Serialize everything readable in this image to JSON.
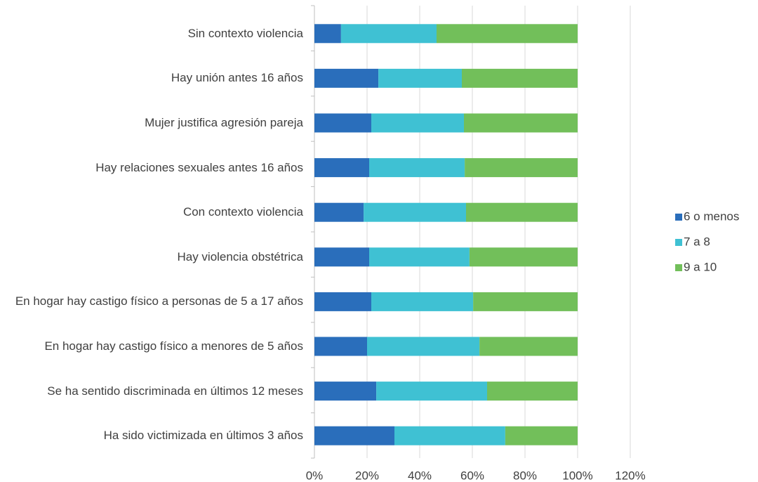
{
  "chart_data": {
    "type": "stacked-barh",
    "categories": [
      "Sin contexto violencia",
      "Hay unión antes 16 años",
      "Mujer justifica agresión pareja",
      "Hay relaciones sexuales antes 16 años",
      "Con contexto violencia",
      "Hay violencia obstétrica",
      "En hogar hay castigo físico a personas de 5 a 17 años",
      "En hogar hay castigo físico a menores de 5 años",
      "Se ha sentido discriminada en últimos 12 meses",
      "Ha sido victimizada en últimos 3 años"
    ],
    "series": [
      {
        "name": "6 o menos",
        "color": "#2a6ebb",
        "values": [
          10.1,
          24.3,
          21.6,
          20.8,
          18.7,
          20.8,
          21.6,
          20.0,
          23.5,
          30.4
        ]
      },
      {
        "name": "7 a 8",
        "color": "#3fc1d3",
        "values": [
          36.3,
          31.7,
          35.2,
          36.3,
          38.9,
          38.1,
          38.7,
          42.7,
          42.1,
          42.1
        ]
      },
      {
        "name": "9 a 10",
        "color": "#72bf5a",
        "values": [
          53.6,
          44.0,
          43.2,
          42.9,
          42.4,
          41.1,
          39.7,
          37.3,
          34.4,
          27.5
        ]
      }
    ],
    "xlim": [
      0,
      120
    ],
    "xticks": [
      {
        "value": 0,
        "label": "0%"
      },
      {
        "value": 20,
        "label": "20%"
      },
      {
        "value": 40,
        "label": "40%"
      },
      {
        "value": 60,
        "label": "60%"
      },
      {
        "value": 80,
        "label": "80%"
      },
      {
        "value": 100,
        "label": "100%"
      },
      {
        "value": 120,
        "label": "120%"
      }
    ],
    "grid": true,
    "legend": "right"
  }
}
